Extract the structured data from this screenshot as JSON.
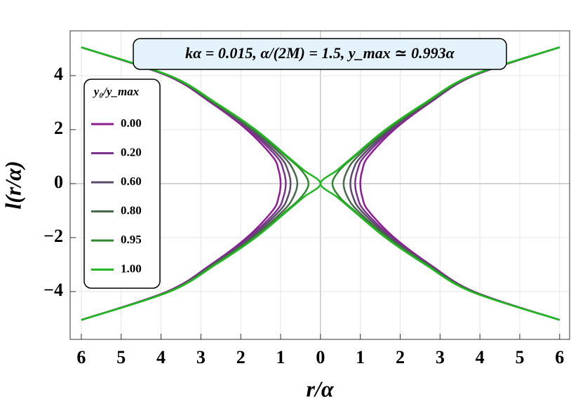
{
  "chart_data": {
    "type": "line",
    "annotation": "kα = 0.015,   α/(2M) = 1.5,   y_max ≃ 0.993α",
    "x_label": "r/α",
    "y_label": "l(r/α)",
    "legend_title": "y₀/y_max",
    "xlim": [
      -6.28,
      6.25
    ],
    "ylim": [
      -5.77,
      5.66
    ],
    "xticks": [
      {
        "value": -6,
        "label": "6"
      },
      {
        "value": -5,
        "label": "5"
      },
      {
        "value": -4,
        "label": "4"
      },
      {
        "value": -3,
        "label": "3"
      },
      {
        "value": -2,
        "label": "2"
      },
      {
        "value": -1,
        "label": "1"
      },
      0,
      1,
      2,
      3,
      4,
      5,
      6
    ],
    "yticks": [
      {
        "value": -4,
        "label": "−4"
      },
      {
        "value": -2,
        "label": "−2"
      },
      0,
      2,
      4
    ],
    "grid": true,
    "legend": "upper left",
    "series": [
      {
        "name": "0.00",
        "color": "#8e1b92",
        "x": [
          6.0,
          3.85,
          2.75,
          1.85,
          1.2,
          1.05,
          1.0,
          1.05,
          1.2,
          1.85,
          2.75,
          3.85,
          6.0,
          null,
          -6.0,
          -3.85,
          -2.75,
          -1.85,
          -1.2,
          -1.05,
          -1.0,
          -1.05,
          -1.2,
          -1.85,
          -2.75,
          -3.85,
          -6.0
        ],
        "values": [
          -5.05,
          -4,
          -3,
          -2,
          -1,
          -0.5,
          0,
          0.5,
          1,
          2,
          3,
          4,
          5.05,
          null,
          -5.05,
          -4,
          -3,
          -2,
          -1,
          -0.5,
          0,
          0.5,
          1,
          2,
          3,
          4,
          5.05
        ]
      },
      {
        "name": "0.20",
        "color": "#7b3390",
        "x": [
          6.0,
          3.83,
          2.72,
          1.8,
          1.1,
          0.93,
          0.87,
          0.93,
          1.1,
          1.8,
          2.72,
          3.83,
          6.0,
          null,
          -6.0,
          -3.83,
          -2.72,
          -1.8,
          -1.1,
          -0.93,
          -0.87,
          -0.93,
          -1.1,
          -1.8,
          -2.72,
          -3.83,
          -6.0
        ],
        "values": [
          -5.05,
          -4,
          -3,
          -2,
          -1,
          -0.5,
          0,
          0.5,
          1,
          2,
          3,
          4,
          5.05,
          null,
          -5.05,
          -4,
          -3,
          -2,
          -1,
          -0.5,
          0,
          0.5,
          1,
          2,
          3,
          4,
          5.05
        ]
      },
      {
        "name": "0.60",
        "color": "#5c4b68",
        "x": [
          6.0,
          3.82,
          2.7,
          1.75,
          1.02,
          0.82,
          0.75,
          0.82,
          1.02,
          1.75,
          2.7,
          3.82,
          6.0,
          null,
          -6.0,
          -3.82,
          -2.7,
          -1.75,
          -1.02,
          -0.82,
          -0.75,
          -0.82,
          -1.02,
          -1.75,
          -2.7,
          -3.82,
          -6.0
        ],
        "values": [
          -5.05,
          -4,
          -3,
          -2,
          -1,
          -0.5,
          0,
          0.5,
          1,
          2,
          3,
          4,
          5.05,
          null,
          -5.05,
          -4,
          -3,
          -2,
          -1,
          -0.5,
          0,
          0.5,
          1,
          2,
          3,
          4,
          5.05
        ]
      },
      {
        "name": "0.80",
        "color": "#486a4a",
        "x": [
          6.0,
          3.8,
          2.68,
          1.7,
          0.93,
          0.68,
          0.58,
          0.68,
          0.93,
          1.7,
          2.68,
          3.8,
          6.0,
          null,
          -6.0,
          -3.8,
          -2.68,
          -1.7,
          -0.93,
          -0.68,
          -0.58,
          -0.68,
          -0.93,
          -1.7,
          -2.68,
          -3.8,
          -6.0
        ],
        "values": [
          -5.05,
          -4,
          -3,
          -2,
          -1,
          -0.5,
          0,
          0.5,
          1,
          2,
          3,
          4,
          5.05,
          null,
          -5.05,
          -4,
          -3,
          -2,
          -1,
          -0.5,
          0,
          0.5,
          1,
          2,
          3,
          4,
          5.05
        ]
      },
      {
        "name": "0.95",
        "color": "#2e8a2e",
        "x": [
          6.0,
          3.8,
          2.65,
          1.65,
          0.85,
          0.48,
          0.3,
          0.48,
          0.85,
          1.65,
          2.65,
          3.8,
          6.0,
          null,
          -6.0,
          -3.8,
          -2.65,
          -1.65,
          -0.85,
          -0.48,
          -0.3,
          -0.48,
          -0.85,
          -1.65,
          -2.65,
          -3.8,
          -6.0
        ],
        "values": [
          -5.05,
          -4,
          -3,
          -2,
          -1,
          -0.5,
          0,
          0.5,
          1,
          2,
          3,
          4,
          5.05,
          null,
          -5.05,
          -4,
          -3,
          -2,
          -1,
          -0.5,
          0,
          0.5,
          1,
          2,
          3,
          4,
          5.05
        ]
      },
      {
        "name": "1.00",
        "color": "#22b822",
        "x": [
          6.0,
          3.78,
          2.63,
          1.63,
          0.82,
          0.42,
          0,
          0.42,
          0.82,
          1.63,
          2.63,
          3.78,
          6.0,
          null,
          -6.0,
          -3.78,
          -2.63,
          -1.63,
          -0.82,
          -0.42,
          0,
          -0.42,
          -0.82,
          -1.63,
          -2.63,
          -3.78,
          -6.0
        ],
        "values": [
          -5.05,
          -4,
          -3,
          -2,
          -1,
          -0.5,
          0,
          0.5,
          1,
          2,
          3,
          4,
          5.05,
          null,
          -5.05,
          -4,
          -3,
          -2,
          -1,
          -0.5,
          0,
          0.5,
          1,
          2,
          3,
          4,
          5.05
        ]
      }
    ]
  }
}
